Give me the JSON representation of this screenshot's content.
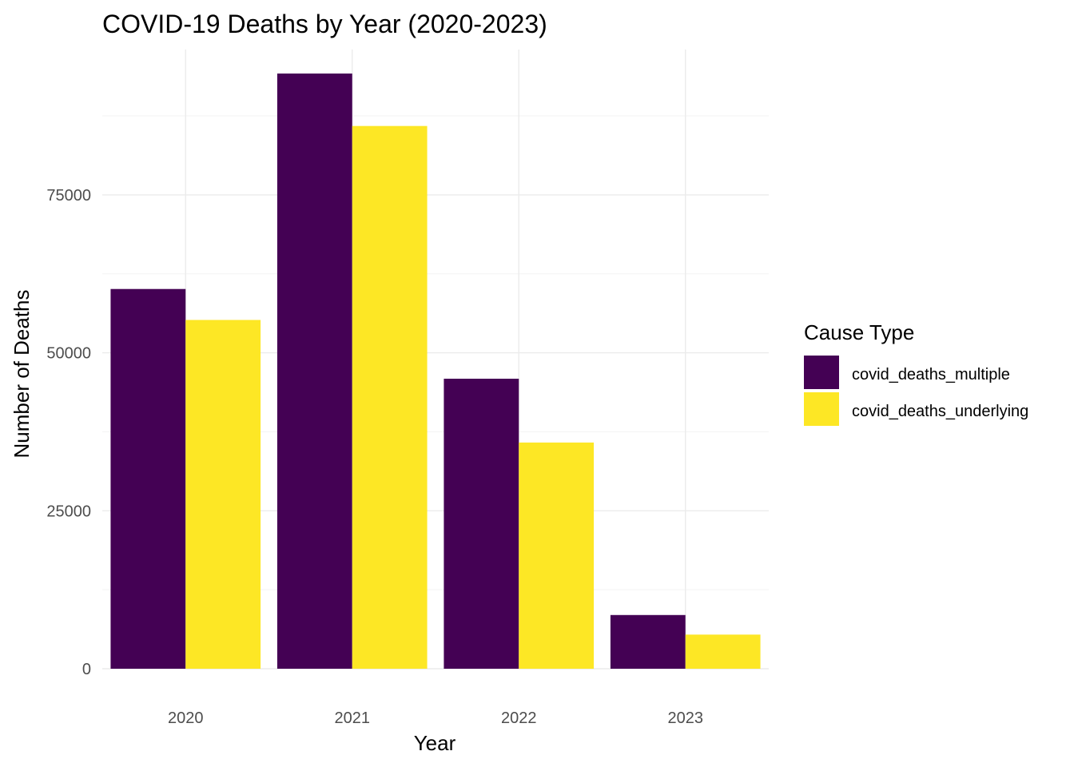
{
  "chart_data": {
    "type": "bar",
    "title": "COVID-19 Deaths by Year (2020-2023)",
    "xlabel": "Year",
    "ylabel": "Number of Deaths",
    "categories": [
      "2020",
      "2021",
      "2022",
      "2023"
    ],
    "series": [
      {
        "name": "covid_deaths_multiple",
        "color": "#440154",
        "values": [
          60100,
          94200,
          45900,
          8500
        ]
      },
      {
        "name": "covid_deaths_underlying",
        "color": "#FDE725",
        "values": [
          55200,
          85900,
          35800,
          5400
        ]
      }
    ],
    "ylim": [
      0,
      98000
    ],
    "yticks": [
      0,
      25000,
      50000,
      75000
    ],
    "ytick_labels": [
      "0",
      "25000",
      "50000",
      "75000"
    ],
    "grid": true,
    "legend": {
      "title": "Cause Type",
      "position": "right"
    }
  }
}
